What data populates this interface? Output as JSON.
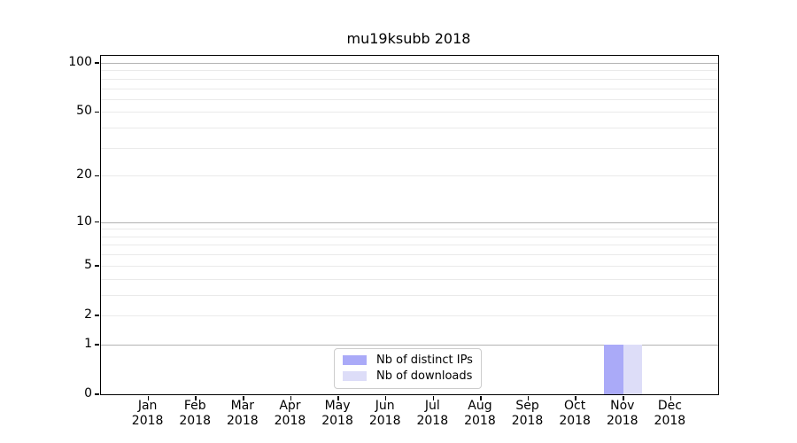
{
  "chart_data": {
    "type": "bar",
    "title": "mu19ksubb 2018",
    "categories": [
      "Jan",
      "Feb",
      "Mar",
      "Apr",
      "May",
      "Jun",
      "Jul",
      "Aug",
      "Sep",
      "Oct",
      "Nov",
      "Dec"
    ],
    "x_year_sublabel": "2018",
    "series": [
      {
        "name": "Nb of distinct IPs",
        "color": "#aaaaf8",
        "values": [
          0,
          0,
          0,
          0,
          0,
          0,
          0,
          0,
          0,
          0,
          1,
          0
        ]
      },
      {
        "name": "Nb of downloads",
        "color": "#ddddf8",
        "values": [
          0,
          0,
          0,
          0,
          0,
          0,
          0,
          0,
          0,
          0,
          1,
          0
        ]
      }
    ],
    "y_axis": {
      "scale": "log1p",
      "tick_labels": [
        0,
        1,
        2,
        5,
        10,
        20,
        50,
        100
      ],
      "major_gridlines": [
        1,
        10,
        100
      ],
      "minor_gridlines": [
        2,
        3,
        4,
        5,
        6,
        7,
        8,
        9,
        20,
        30,
        40,
        50,
        60,
        70,
        80,
        90
      ],
      "range": [
        0,
        110
      ]
    },
    "legend": {
      "position": "lower center"
    },
    "grid": true,
    "colors": {
      "major_grid": "#b3b3b3",
      "minor_grid": "#eaeaea",
      "spine": "#000000",
      "background": "#ffffff"
    }
  }
}
